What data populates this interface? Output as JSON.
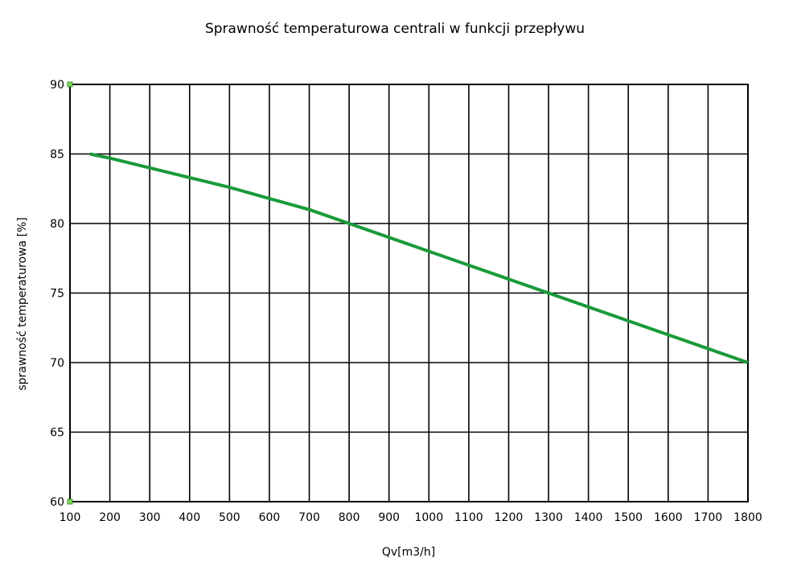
{
  "chart_data": {
    "type": "line",
    "title": "Sprawność temperaturowa centrali w funkcji przepływu",
    "xlabel": "Qv[m3/h]",
    "ylabel": "sprawność temperaturowa [%]",
    "xlim": [
      100,
      1800
    ],
    "ylim": [
      60,
      90
    ],
    "x_ticks": [
      100,
      200,
      300,
      400,
      500,
      600,
      700,
      800,
      900,
      1000,
      1100,
      1200,
      1300,
      1400,
      1500,
      1600,
      1700,
      1800
    ],
    "y_ticks": [
      60,
      65,
      70,
      75,
      80,
      85,
      90
    ],
    "grid": true,
    "legend": "none",
    "series": [
      {
        "color": "#1a9a3a",
        "x": [
          150,
          200,
          300,
          400,
          500,
          600,
          700,
          800,
          900,
          1000,
          1100,
          1200,
          1300,
          1400,
          1500,
          1600,
          1700,
          1800
        ],
        "y": [
          85.0,
          84.7,
          84.0,
          83.3,
          82.6,
          81.8,
          81.0,
          80.0,
          79.0,
          78.0,
          77.0,
          76.0,
          75.0,
          74.0,
          73.0,
          72.0,
          71.0,
          70.0
        ]
      }
    ],
    "axis_marker_color": "#7ed957"
  }
}
